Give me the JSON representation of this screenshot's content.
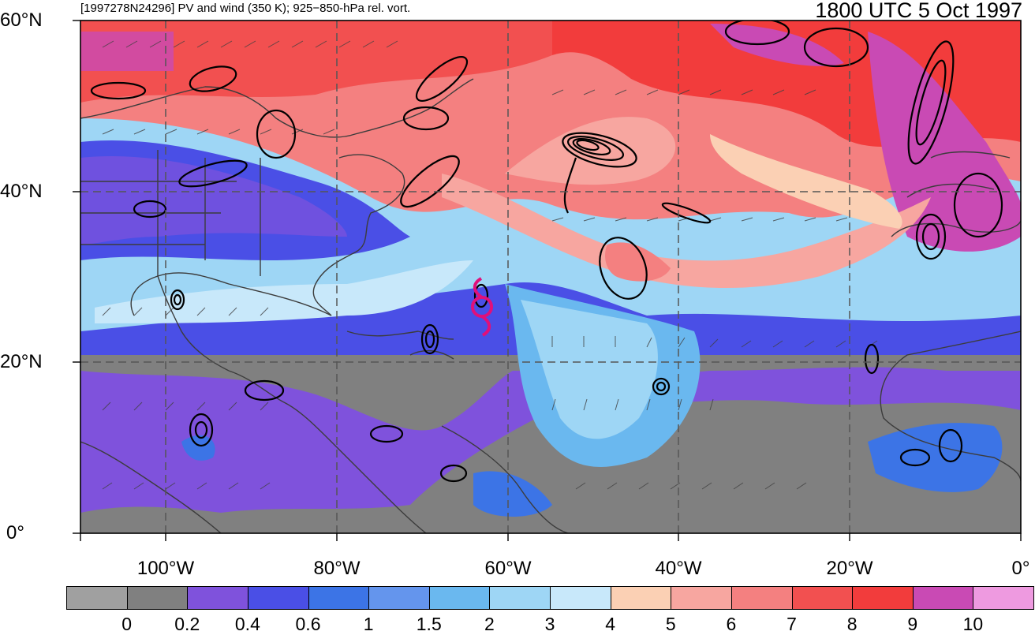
{
  "header": {
    "left_title": "[1997278N24296] PV and wind (350 K); 925−850-hPa rel. vort.",
    "right_title": "1800 UTC 5 Oct 1997"
  },
  "axes": {
    "lat_labels": [
      "60°N",
      "40°N",
      "20°N",
      "0°"
    ],
    "lon_labels": [
      "100°W",
      "80°W",
      "60°W",
      "40°W",
      "20°W",
      "0°"
    ]
  },
  "colorbar": {
    "labels": [
      "0",
      "0.2",
      "0.4",
      "0.6",
      "1",
      "1.5",
      "2",
      "3",
      "4",
      "5",
      "6",
      "7",
      "8",
      "9",
      "10"
    ],
    "colors": [
      "#a0a0a0",
      "#808080",
      "#7f52dc",
      "#4a4fe6",
      "#3c74e6",
      "#6495ed",
      "#6ab8ef",
      "#9ed6f5",
      "#c8e8fa",
      "#fbd0b4",
      "#f7a6a0",
      "#f48080",
      "#f25050",
      "#f23c3c",
      "#c94ab4",
      "#ee9ae0"
    ]
  },
  "legend_markers": {
    "storm_symbol": "tropical-cyclone-symbol"
  }
}
